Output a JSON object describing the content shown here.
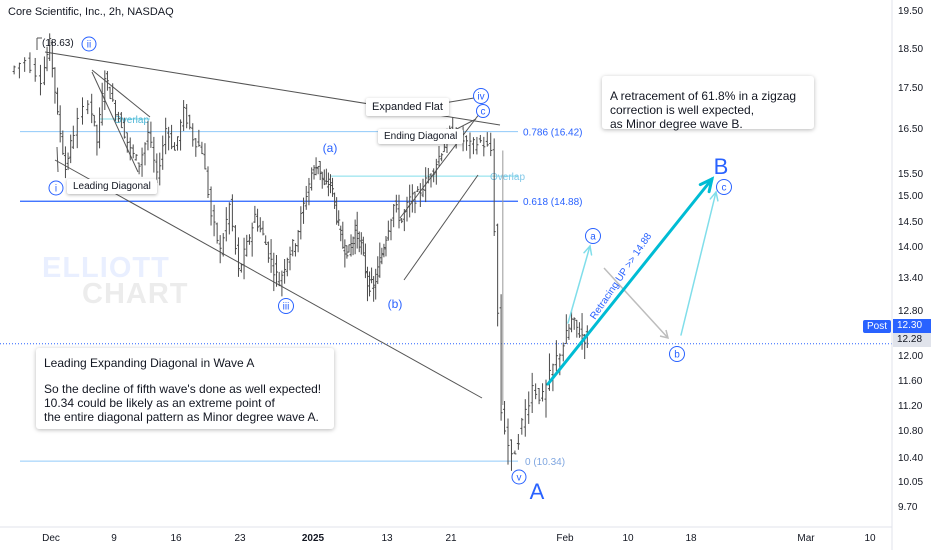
{
  "header": {
    "symbol_title": "Core Scientific, Inc., 2h, NASDAQ"
  },
  "colors": {
    "blue": "#2962ff",
    "cyan": "#00bcd4",
    "light_cyan": "#80deea",
    "gray_line": "#555555",
    "candle": "#4a4a4a"
  },
  "watermark": {
    "line1": "ELLIOTT",
    "line2": "CHART"
  },
  "notes": {
    "retracement": [
      "A retracement of 61.8% in a zigzag",
      "correction is well expected,",
      "as Minor degree wave B."
    ],
    "leading_title": "Leading Expanding Diagonal in Wave A",
    "leading_body": [
      "So the decline of fifth wave's done as well expected!",
      "10.34 could be likely as an extreme point of",
      " the entire diagonal pattern as Minor degree wave A."
    ]
  },
  "small_labels": {
    "expanded_flat": "Expanded Flat",
    "ending_diagonal": "Ending Diagonal",
    "leading_diagonal": "Leading Diagonal"
  },
  "price_tags": {
    "post_label": "Post",
    "post_price": "12.30",
    "last_price": "12.28"
  },
  "chart_data": {
    "type": "candlestick",
    "title": "Core Scientific, Inc., 2h, NASDAQ",
    "y_axis": {
      "ticks": [
        19.5,
        18.5,
        17.5,
        16.5,
        15.5,
        15.0,
        14.5,
        14.0,
        13.4,
        12.8,
        12.0,
        11.6,
        11.2,
        10.8,
        10.4,
        10.05,
        9.7
      ],
      "tick_labels": [
        "19.50",
        "18.50",
        "17.50",
        "16.50",
        "15.50",
        "15.00",
        "14.50",
        "14.00",
        "13.40",
        "12.80",
        "12.00",
        "11.60",
        "11.20",
        "10.80",
        "10.40",
        "10.05",
        "9.70"
      ]
    },
    "x_axis": {
      "tick_labels": [
        "Dec",
        "9",
        "16",
        "23",
        "2025",
        "13",
        "21",
        "Feb",
        "10",
        "18",
        "Mar",
        "10"
      ],
      "tick_days": [
        0,
        8,
        15,
        22,
        31,
        43,
        51,
        62,
        70,
        78,
        90,
        98
      ]
    },
    "price_path": [
      [
        -5,
        17.9
      ],
      [
        -3,
        18.2
      ],
      [
        -1,
        17.7
      ],
      [
        0,
        18.63
      ],
      [
        1,
        16.8
      ],
      [
        2,
        15.6
      ],
      [
        3,
        16.4
      ],
      [
        5,
        17.2
      ],
      [
        6,
        16.2
      ],
      [
        7,
        17.8
      ],
      [
        8,
        17.1
      ],
      [
        9,
        16.6
      ],
      [
        10,
        16.0
      ],
      [
        11,
        15.7
      ],
      [
        12,
        16.4
      ],
      [
        13,
        15.4
      ],
      [
        14,
        16.5
      ],
      [
        15,
        16.0
      ],
      [
        16,
        16.9
      ],
      [
        17,
        16.3
      ],
      [
        18,
        16.0
      ],
      [
        19,
        14.6
      ],
      [
        20,
        13.9
      ],
      [
        21,
        14.8
      ],
      [
        22,
        13.5
      ],
      [
        23,
        14.0
      ],
      [
        24,
        14.6
      ],
      [
        25,
        14.2
      ],
      [
        26,
        13.7
      ],
      [
        27,
        13.3
      ],
      [
        28,
        13.8
      ],
      [
        29,
        14.1
      ],
      [
        30,
        14.8
      ],
      [
        31,
        15.5
      ],
      [
        32,
        15.7
      ],
      [
        33,
        15.2
      ],
      [
        34,
        15.3
      ],
      [
        35,
        14.6
      ],
      [
        36,
        14.0
      ],
      [
        37,
        13.9
      ],
      [
        38,
        14.3
      ],
      [
        39,
        14.0
      ],
      [
        40,
        13.3
      ],
      [
        41,
        13.2
      ],
      [
        42,
        13.7
      ],
      [
        43,
        14.2
      ],
      [
        44,
        14.8
      ],
      [
        45,
        14.5
      ],
      [
        46,
        14.9
      ],
      [
        47,
        15.0
      ],
      [
        48,
        15.3
      ],
      [
        49,
        15.6
      ],
      [
        50,
        16.0
      ],
      [
        51,
        16.4
      ],
      [
        52,
        16.3
      ],
      [
        53,
        16.1
      ],
      [
        54,
        16.2
      ],
      [
        55,
        16.0
      ],
      [
        56,
        11.1
      ],
      [
        57,
        10.34
      ],
      [
        58,
        10.9
      ],
      [
        59,
        11.5
      ],
      [
        60,
        11.3
      ],
      [
        61,
        11.8
      ],
      [
        62,
        12.2
      ],
      [
        63,
        12.6
      ],
      [
        64,
        12.4
      ],
      [
        65,
        12.28
      ]
    ],
    "levels": [
      {
        "label": "0.786 (16.42)",
        "price": 16.42
      },
      {
        "label": "0.618 (14.88)",
        "price": 14.88
      },
      {
        "label": "0 (10.34)",
        "price": 10.34
      },
      {
        "label": "Overlap",
        "price": 15.43
      },
      {
        "label": "Overlap",
        "price": 16.72
      }
    ],
    "price_labels": {
      "high": "(18.63)",
      "post": "12.30",
      "last": "12.28"
    },
    "wave_labels": {
      "i": "i",
      "ii": "ii",
      "iii": "iii",
      "iv": "iv",
      "v": "v",
      "c_small": "c",
      "a_paren": "(a)",
      "b_paren": "(b)",
      "a_circle": "a",
      "b_circle": "b",
      "c_circle": "c",
      "A": "A",
      "B": "B"
    },
    "projection_text": "Retracing UP >> 14.88"
  }
}
